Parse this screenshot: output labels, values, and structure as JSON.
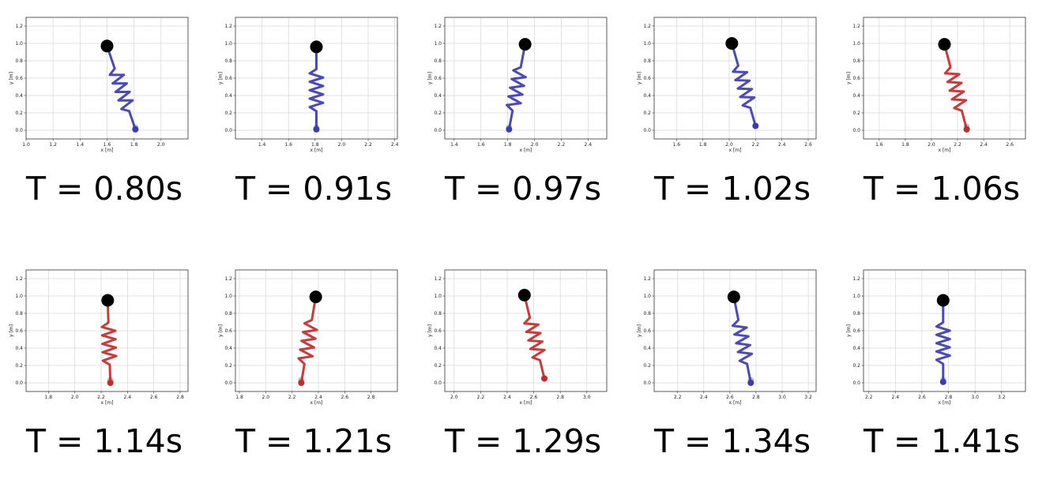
{
  "figure": {
    "xlabel": "x [m]",
    "ylabel": "y [m]",
    "y_ticks": [
      "0.0",
      "0.2",
      "0.4",
      "0.6",
      "0.8",
      "1.0",
      "1.2"
    ]
  },
  "colors": {
    "blue": "#3b3bb3",
    "red": "#c42a2a",
    "grey": "#b0b0b0",
    "mass": "#000000",
    "grid": "#d6d6d6"
  },
  "chart_data": [
    {
      "type": "scatter",
      "caption": "T = 0.80s",
      "xlim": [
        1.0,
        2.2
      ],
      "ylim": [
        -0.1,
        1.3
      ],
      "x_ticks": [
        "1.0",
        "1.2",
        "1.4",
        "1.6",
        "1.8",
        "2.0"
      ],
      "spring_color": "blue",
      "top": [
        1.6,
        0.97
      ],
      "foot": [
        1.81,
        0.01
      ],
      "prev_foot": [
        1.81,
        0.03
      ]
    },
    {
      "type": "scatter",
      "caption": "T = 0.91s",
      "xlim": [
        1.2,
        2.42
      ],
      "ylim": [
        -0.1,
        1.3
      ],
      "x_ticks": [
        "1.4",
        "1.6",
        "1.8",
        "2.0",
        "2.2",
        "2.4"
      ],
      "spring_color": "blue",
      "top": [
        1.81,
        0.96
      ],
      "foot": [
        1.81,
        0.01
      ],
      "prev_foot": [
        1.81,
        0.03
      ]
    },
    {
      "type": "scatter",
      "caption": "T = 0.97s",
      "xlim": [
        1.33,
        2.54
      ],
      "ylim": [
        -0.1,
        1.3
      ],
      "x_ticks": [
        "1.4",
        "1.6",
        "1.8",
        "2.0",
        "2.2",
        "2.4"
      ],
      "spring_color": "blue",
      "top": [
        1.93,
        0.99
      ],
      "foot": [
        1.81,
        0.01
      ],
      "prev_foot": [
        1.81,
        0.03
      ]
    },
    {
      "type": "scatter",
      "caption": "T = 1.02s",
      "xlim": [
        1.43,
        2.66
      ],
      "ylim": [
        -0.1,
        1.3
      ],
      "x_ticks": [
        "1.6",
        "1.8",
        "2.0",
        "2.2",
        "2.4",
        "2.6"
      ],
      "spring_color": "blue",
      "top": [
        2.02,
        1.0
      ],
      "foot": [
        2.2,
        0.05
      ],
      "prev_foot": [
        2.2,
        0.05
      ]
    },
    {
      "type": "scatter",
      "caption": "T = 1.06s",
      "xlim": [
        1.48,
        2.72
      ],
      "ylim": [
        -0.1,
        1.3
      ],
      "x_ticks": [
        "1.6",
        "1.8",
        "2.0",
        "2.2",
        "2.4",
        "2.6"
      ],
      "spring_color": "red",
      "top": [
        2.1,
        0.99
      ],
      "foot": [
        2.27,
        0.01
      ],
      "prev_foot": [
        2.27,
        0.04
      ]
    },
    {
      "type": "scatter",
      "caption": "T = 1.14s",
      "xlim": [
        1.63,
        2.86
      ],
      "ylim": [
        -0.1,
        1.3
      ],
      "x_ticks": [
        "1.8",
        "2.0",
        "2.2",
        "2.4",
        "2.6",
        "2.8"
      ],
      "spring_color": "red",
      "top": [
        2.25,
        0.95
      ],
      "foot": [
        2.27,
        0.0
      ],
      "prev_foot": [
        2.27,
        0.03
      ]
    },
    {
      "type": "scatter",
      "caption": "T = 1.21s",
      "xlim": [
        1.77,
        3.0
      ],
      "ylim": [
        -0.1,
        1.3
      ],
      "x_ticks": [
        "1.8",
        "2.0",
        "2.2",
        "2.4",
        "2.6",
        "2.8"
      ],
      "spring_color": "red",
      "top": [
        2.38,
        0.99
      ],
      "foot": [
        2.27,
        0.0
      ],
      "prev_foot": [
        2.27,
        0.03
      ]
    },
    {
      "type": "scatter",
      "caption": "T = 1.29s",
      "xlim": [
        1.93,
        3.15
      ],
      "ylim": [
        -0.1,
        1.3
      ],
      "x_ticks": [
        "2.0",
        "2.2",
        "2.4",
        "2.6",
        "2.8",
        "3.0"
      ],
      "spring_color": "red",
      "top": [
        2.53,
        1.01
      ],
      "foot": [
        2.68,
        0.05
      ],
      "prev_foot": [
        2.68,
        0.05
      ]
    },
    {
      "type": "scatter",
      "caption": "T = 1.34s",
      "xlim": [
        2.02,
        3.26
      ],
      "ylim": [
        -0.1,
        1.3
      ],
      "x_ticks": [
        "2.2",
        "2.4",
        "2.6",
        "2.8",
        "3.0",
        "3.2"
      ],
      "spring_color": "blue",
      "top": [
        2.63,
        0.99
      ],
      "foot": [
        2.76,
        0.0
      ],
      "prev_foot": [
        2.76,
        0.03
      ]
    },
    {
      "type": "scatter",
      "caption": "T = 1.41s",
      "xlim": [
        2.16,
        3.38
      ],
      "ylim": [
        -0.1,
        1.3
      ],
      "x_ticks": [
        "2.2",
        "2.4",
        "2.6",
        "2.8",
        "3.0",
        "3.2"
      ],
      "spring_color": "blue",
      "top": [
        2.76,
        0.95
      ],
      "foot": [
        2.76,
        0.01
      ],
      "prev_foot": [
        2.76,
        0.03
      ]
    }
  ]
}
